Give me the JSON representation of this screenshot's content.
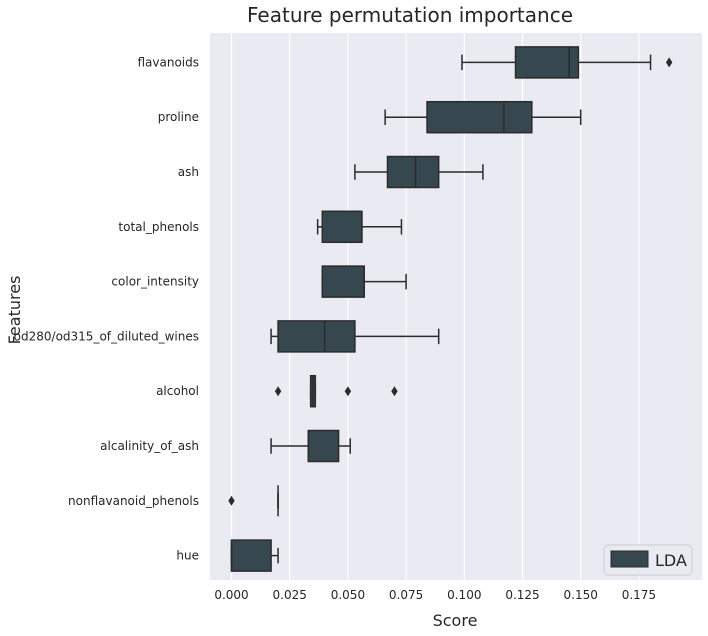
{
  "chart_data": {
    "type": "box",
    "title": "Feature permutation importance",
    "xlabel": "Score",
    "ylabel": "Features",
    "xlim": [
      -0.009,
      0.199
    ],
    "xticks": [
      0.0,
      0.025,
      0.05,
      0.075,
      0.1,
      0.125,
      0.15,
      0.175
    ],
    "xtick_labels": [
      "0.000",
      "0.025",
      "0.050",
      "0.075",
      "0.100",
      "0.125",
      "0.150",
      "0.175"
    ],
    "grid": true,
    "legend": {
      "position": "bottom-right",
      "entries": [
        "LDA"
      ]
    },
    "colors": {
      "box_fill": "#37474f",
      "box_edge": "#2b2b2b",
      "plot_bg": "#eaeaf2",
      "grid": "#ffffff"
    },
    "series": [
      {
        "name": "LDA",
        "boxes": [
          {
            "feature": "flavanoids",
            "whisker_low": 0.099,
            "q1": 0.122,
            "median": 0.145,
            "q3": 0.149,
            "whisker_high": 0.18,
            "outliers": [
              0.188
            ]
          },
          {
            "feature": "proline",
            "whisker_low": 0.066,
            "q1": 0.084,
            "median": 0.117,
            "q3": 0.129,
            "whisker_high": 0.15,
            "outliers": []
          },
          {
            "feature": "ash",
            "whisker_low": 0.053,
            "q1": 0.067,
            "median": 0.079,
            "q3": 0.089,
            "whisker_high": 0.108,
            "outliers": []
          },
          {
            "feature": "total_phenols",
            "whisker_low": 0.037,
            "q1": 0.039,
            "median": 0.056,
            "q3": 0.056,
            "whisker_high": 0.073,
            "outliers": []
          },
          {
            "feature": "color_intensity",
            "whisker_low": 0.039,
            "q1": 0.039,
            "median": 0.057,
            "q3": 0.057,
            "whisker_high": 0.075,
            "outliers": []
          },
          {
            "feature": "od280/od315_of_diluted_wines",
            "whisker_low": 0.017,
            "q1": 0.02,
            "median": 0.04,
            "q3": 0.053,
            "whisker_high": 0.089,
            "outliers": []
          },
          {
            "feature": "alcohol",
            "whisker_low": 0.034,
            "q1": 0.034,
            "median": 0.035,
            "q3": 0.036,
            "whisker_high": 0.036,
            "outliers": [
              0.02,
              0.05,
              0.07
            ]
          },
          {
            "feature": "alcalinity_of_ash",
            "whisker_low": 0.017,
            "q1": 0.033,
            "median": 0.033,
            "q3": 0.046,
            "whisker_high": 0.051,
            "outliers": []
          },
          {
            "feature": "nonflavanoid_phenols",
            "whisker_low": 0.02,
            "q1": 0.02,
            "median": 0.02,
            "q3": 0.02,
            "whisker_high": 0.02,
            "outliers": [
              0.0
            ]
          },
          {
            "feature": "hue",
            "whisker_low": 0.0,
            "q1": 0.0,
            "median": 0.0,
            "q3": 0.017,
            "whisker_high": 0.02,
            "outliers": []
          }
        ]
      }
    ]
  }
}
